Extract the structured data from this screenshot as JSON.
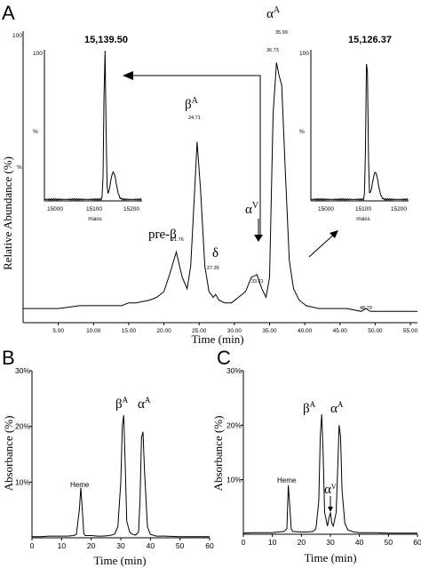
{
  "panel_a": {
    "letter": "A",
    "ylabel": "Relative Abundance (%)",
    "xlabel": "Time (min)",
    "yticks": [
      "100",
      "%"
    ],
    "xticks": [
      "5.00",
      "10.00",
      "15.00",
      "20.00",
      "25.00",
      "30.00",
      "35.00",
      "40.00",
      "45.00",
      "50.00",
      "55.00"
    ],
    "peaks": [
      {
        "label": "pre-β",
        "num": "21.76"
      },
      {
        "label": "β",
        "sup": "A",
        "num": "24.71"
      },
      {
        "label": "δ",
        "num": "27.35"
      },
      {
        "label": "α",
        "sup": "V",
        "num": "33.21"
      },
      {
        "label": "α",
        "sup": "A",
        "num": "35.99"
      },
      {
        "label": "",
        "num": "36.73"
      },
      {
        "label": "",
        "num": "48.70"
      }
    ],
    "inset_left": {
      "title": "15,139.50",
      "ytop": "100",
      "ymid": "%",
      "xticks": [
        "15000",
        "15100",
        "15200"
      ],
      "xlabel": "mass"
    },
    "inset_right": {
      "title": "15,126.37",
      "ytop": "100",
      "ymid": "%",
      "xticks": [
        "15000",
        "15100",
        "15200"
      ],
      "xlabel": "mass"
    }
  },
  "panel_b": {
    "letter": "B",
    "ylabel": "Absorbance (%)",
    "xlabel": "Time (min)",
    "yticks": [
      "10%",
      "20%",
      "30%"
    ],
    "xticks": [
      "0",
      "10",
      "20",
      "30",
      "40",
      "50",
      "60"
    ],
    "peaks": [
      {
        "label": "Heme"
      },
      {
        "label": "β",
        "sup": "A"
      },
      {
        "label": "α",
        "sup": "A"
      }
    ]
  },
  "panel_c": {
    "letter": "C",
    "ylabel": "Absorbance (%)",
    "xlabel": "Time (min)",
    "yticks": [
      "10%",
      "20%",
      "30%"
    ],
    "xticks": [
      "0",
      "10",
      "20",
      "30",
      "40",
      "50",
      "60"
    ],
    "peaks": [
      {
        "label": "Heme"
      },
      {
        "label": "β",
        "sup": "A"
      },
      {
        "label": "α",
        "sup": "A"
      },
      {
        "label": "α",
        "sup": "V"
      }
    ]
  },
  "chart_data": [
    {
      "type": "line",
      "title": "",
      "xlabel": "Time (min)",
      "ylabel": "Relative Abundance (%)",
      "xlim": [
        0,
        56
      ],
      "ylim": [
        0,
        100
      ],
      "series": [
        {
          "x": [
            0,
            5,
            8,
            10,
            12,
            14,
            15,
            16,
            18,
            19,
            20,
            20.8,
            21.76,
            22.6,
            23.3,
            23.8,
            24.3,
            24.71,
            25.2,
            25.8,
            26.4,
            27,
            27.35,
            27.8,
            28.6,
            29.6,
            30.6,
            31.6,
            32.4,
            33.21,
            33.9,
            34.5,
            35,
            35.5,
            35.99,
            36.3,
            36.73,
            37.2,
            37.8,
            38.4,
            39.2,
            40.2,
            42,
            44,
            46,
            48,
            48.7,
            49.3,
            51,
            53,
            55,
            56
          ],
          "y": [
            5,
            5,
            6,
            6,
            6,
            6,
            7,
            7,
            8,
            9,
            11,
            17,
            25,
            16,
            12,
            20,
            44,
            64,
            47,
            20,
            11,
            9,
            10,
            8,
            7,
            7,
            9,
            11,
            16,
            17,
            12,
            9,
            16,
            74,
            92,
            88,
            84,
            56,
            22,
            12,
            8,
            6,
            5,
            5,
            5,
            4,
            5,
            4,
            4,
            4,
            4,
            4
          ]
        }
      ]
    },
    {
      "type": "line",
      "title": "",
      "xlabel": "Time (min)",
      "ylabel": "Absorbance (%)",
      "xlim": [
        0,
        60
      ],
      "ylim": [
        0,
        30
      ],
      "series": [
        {
          "x": [
            0,
            3,
            6,
            8,
            10,
            12,
            14,
            15,
            16,
            16.5,
            17,
            17.5,
            18,
            20,
            22,
            24,
            26,
            27,
            28,
            29,
            30,
            30.5,
            31,
            31.5,
            32,
            33,
            34,
            35,
            36,
            36.5,
            37,
            37.5,
            38,
            39,
            40,
            42,
            45,
            50,
            55,
            60
          ],
          "y": [
            0.2,
            0.2,
            0.3,
            0.3,
            0.3,
            0.3,
            0.4,
            0.6,
            5,
            9,
            5,
            0.8,
            0.4,
            0.4,
            0.3,
            0.3,
            0.4,
            0.5,
            0.7,
            2,
            10,
            20,
            22,
            13,
            3,
            1,
            0.6,
            0.5,
            1,
            7,
            18,
            19,
            12,
            2,
            0.6,
            0.3,
            0.3,
            0.2,
            0.2,
            0.2
          ]
        }
      ]
    },
    {
      "type": "line",
      "title": "",
      "xlabel": "Time (min)",
      "ylabel": "Absorbance (%)",
      "xlim": [
        0,
        60
      ],
      "ylim": [
        0,
        30
      ],
      "series": [
        {
          "x": [
            0,
            3,
            6,
            8,
            10,
            12,
            14,
            15,
            15.5,
            16,
            16.5,
            17,
            20,
            22,
            24,
            25,
            26,
            26.5,
            27,
            27.5,
            28,
            29,
            29.5,
            30,
            30.5,
            31,
            32,
            32.5,
            33,
            33.5,
            34,
            35,
            36,
            38,
            40,
            45,
            50,
            55,
            60
          ],
          "y": [
            0.2,
            0.3,
            0.3,
            0.3,
            0.3,
            0.4,
            0.5,
            1,
            9,
            5,
            1,
            0.5,
            0.4,
            0.4,
            0.5,
            1,
            6,
            18,
            22,
            15,
            4,
            1.5,
            3,
            4,
            2,
            1.5,
            4,
            12,
            20,
            18,
            8,
            2,
            0.8,
            0.4,
            0.3,
            0.3,
            0.2,
            0.2,
            0.2
          ]
        }
      ]
    }
  ]
}
